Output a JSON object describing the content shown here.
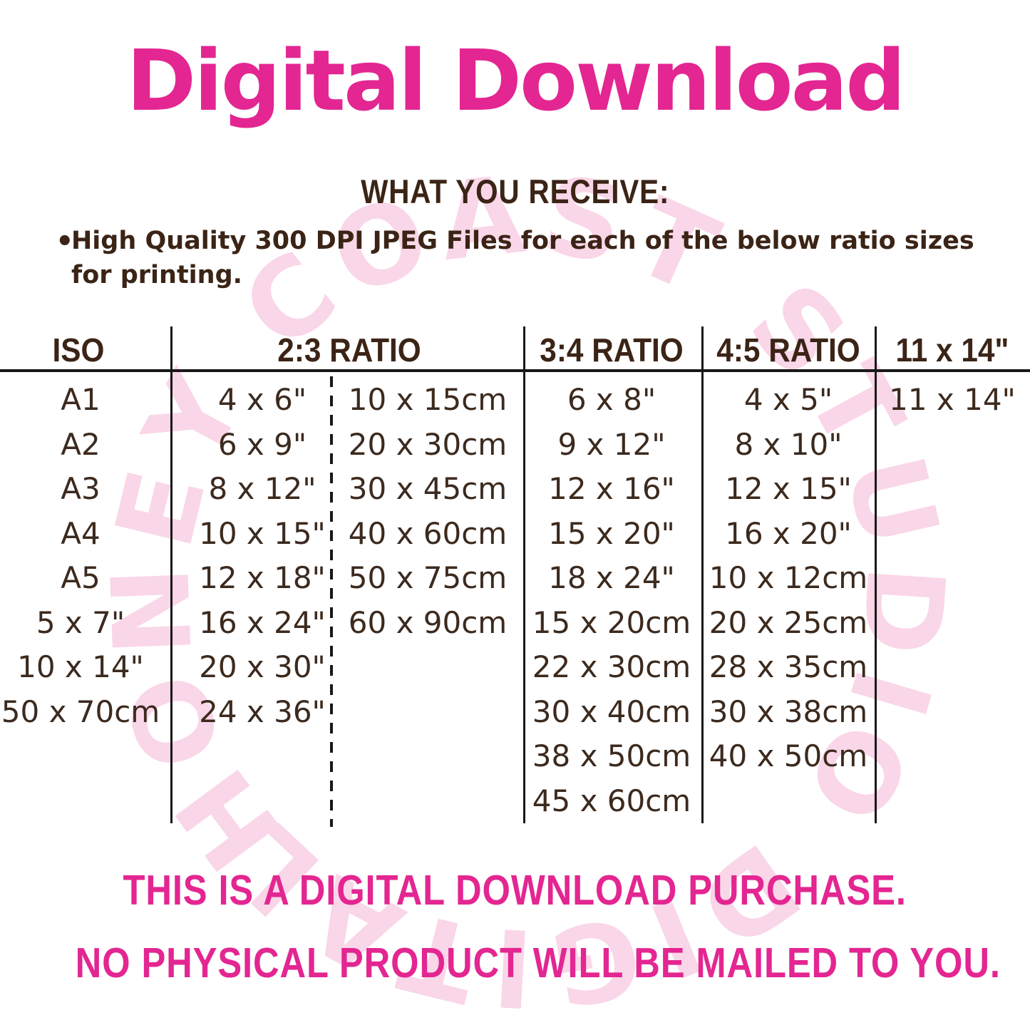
{
  "title": "Digital Download",
  "section_heading": "WHAT YOU RECEIVE:",
  "bullet": {
    "marker": "•",
    "text": "High Quality 300 DPI JPEG Files for each of the below ratio sizes for printing."
  },
  "table": {
    "headers": [
      "ISO",
      "2:3 RATIO",
      "3:4 RATIO",
      "4:5 RATIO",
      "11 x 14\""
    ],
    "columns": [
      {
        "name": "iso",
        "values": [
          "A1",
          "A2",
          "A3",
          "A4",
          "A5",
          "5 x 7\"",
          "10 x 14\"",
          "50 x 70cm"
        ]
      },
      {
        "name": "ratio-2-3-inches",
        "values": [
          "4 x 6\"",
          "6 x 9\"",
          "8 x 12\"",
          "10 x 15\"",
          "12 x 18\"",
          "16 x 24\"",
          "20 x 30\"",
          "24 x 36\""
        ]
      },
      {
        "name": "ratio-2-3-cm",
        "values": [
          "10 x 15cm",
          "20 x 30cm",
          "30 x 45cm",
          "40 x 60cm",
          "50 x 75cm",
          "60 x 90cm"
        ]
      },
      {
        "name": "ratio-3-4",
        "values": [
          "6 x 8\"",
          "9 x 12\"",
          "12 x 16\"",
          "15 x 20\"",
          "18 x 24\"",
          "15 x 20cm",
          "22 x 30cm",
          "30 x 40cm",
          "38 x 50cm",
          "45 x 60cm"
        ]
      },
      {
        "name": "ratio-4-5",
        "values": [
          "4 x 5\"",
          "8 x 10\"",
          "12 x 15\"",
          "16 x 20\"",
          "10 x 12cm",
          "20 x 25cm",
          "28 x 35cm",
          "30 x 38cm",
          "40 x 50cm"
        ]
      },
      {
        "name": "size-11x14",
        "values": [
          "11 x 14\""
        ]
      }
    ]
  },
  "watermark": {
    "text": "HONEY COAST STUDIO DIGITAL"
  },
  "footer": {
    "line1": "THIS IS A DIGITAL DOWNLOAD PURCHASE.",
    "line2": "NO PHYSICAL PRODUCT WILL BE MAILED TO YOU."
  },
  "colors": {
    "pink": "#E32691",
    "brown": "#3B2416",
    "watermark_pink": "#F8CFE5",
    "table_line": "#181818"
  }
}
